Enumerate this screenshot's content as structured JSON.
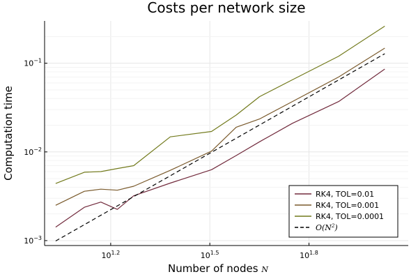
{
  "chart_data": {
    "type": "line",
    "title": "Costs per network size",
    "xlabel": "Number of nodes",
    "xlabel_var": "N",
    "ylabel": "Computation time",
    "xscale": "log10",
    "yscale": "log10",
    "xlim": [
      10,
      126
    ],
    "ylim": [
      0.00088,
      0.3
    ],
    "grid": true,
    "legend_position": "bottom-right",
    "xticks": [
      {
        "value": 15.85,
        "base": "10",
        "exp": "1.2"
      },
      {
        "value": 31.62,
        "base": "10",
        "exp": "1.5"
      },
      {
        "value": 63.1,
        "base": "10",
        "exp": "1.8"
      }
    ],
    "yticks": [
      {
        "value": 0.001,
        "base": "10",
        "exp": "−3"
      },
      {
        "value": 0.01,
        "base": "10",
        "exp": "−2"
      },
      {
        "value": 0.1,
        "base": "10",
        "exp": "−1"
      }
    ],
    "series": [
      {
        "name": "RK4, TOL=0.01",
        "color": "#722b3d",
        "dash": false,
        "x": [
          10.8,
          13.2,
          14.8,
          16.6,
          18.6,
          24.0,
          32.0,
          38.0,
          44.7,
          56.2,
          77.6,
          107.0
        ],
        "y": [
          0.00142,
          0.00238,
          0.00272,
          0.00225,
          0.0032,
          0.00445,
          0.0063,
          0.0091,
          0.013,
          0.021,
          0.037,
          0.086
        ]
      },
      {
        "name": "RK4, TOL=0.001",
        "color": "#7a5a2c",
        "dash": false,
        "x": [
          10.8,
          13.2,
          14.8,
          16.6,
          18.6,
          24.0,
          32.0,
          38.0,
          44.7,
          56.2,
          77.6,
          107.0
        ],
        "y": [
          0.0025,
          0.0036,
          0.0038,
          0.0037,
          0.0041,
          0.0062,
          0.0102,
          0.019,
          0.0235,
          0.037,
          0.07,
          0.148
        ]
      },
      {
        "name": "RK4, TOL=0.0001",
        "color": "#727a1c",
        "dash": false,
        "x": [
          10.8,
          13.2,
          14.8,
          16.6,
          18.6,
          24.0,
          32.0,
          38.0,
          44.7,
          56.2,
          77.6,
          107.0
        ],
        "y": [
          0.0044,
          0.0059,
          0.006,
          0.0065,
          0.007,
          0.0148,
          0.017,
          0.026,
          0.042,
          0.065,
          0.12,
          0.262
        ]
      },
      {
        "name": "O(N^2)",
        "name_base": "O(N",
        "name_sup": "2",
        "name_close": ")",
        "color": "#000000",
        "dash": true,
        "x": [
          10.8,
          107.0
        ],
        "y": [
          0.00099,
          0.128
        ]
      }
    ]
  }
}
